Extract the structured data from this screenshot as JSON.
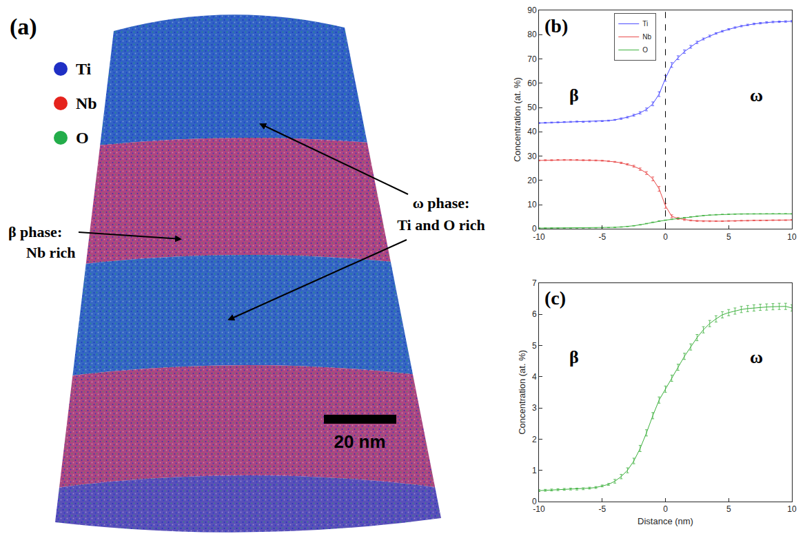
{
  "panel_a": {
    "label": "(a)",
    "legend": [
      {
        "name": "Ti",
        "color": "#1f2fc4"
      },
      {
        "name": "Nb",
        "color": "#e5231d"
      },
      {
        "name": "O",
        "color": "#23ad4a"
      }
    ],
    "phase_labels": [
      {
        "title": "β phase:",
        "text": "Nb rich"
      },
      {
        "title": "ω phase:",
        "text": "Ti and O rich"
      }
    ],
    "scale_bar": "20 nm"
  },
  "chart_data": [
    {
      "type": "line",
      "annotations": [
        "(b)",
        "β",
        "ω"
      ],
      "y_label": "Concentration (at. %)",
      "x": [
        -10,
        -9.5,
        -9,
        -8.5,
        -8,
        -7.5,
        -7,
        -6.5,
        -6,
        -5.5,
        -5,
        -4.5,
        -4,
        -3.5,
        -3,
        -2.5,
        -2,
        -1.5,
        -1,
        -0.5,
        0,
        0.5,
        1,
        1.5,
        2,
        2.5,
        3,
        3.5,
        4,
        4.5,
        5,
        5.5,
        6,
        6.5,
        7,
        7.5,
        8,
        8.5,
        9,
        9.5,
        10
      ],
      "series": [
        {
          "name": "Ti",
          "color": "#4a4aff",
          "values": [
            43.6,
            43.7,
            43.8,
            43.9,
            44.0,
            44.1,
            44.2,
            44.1,
            44.2,
            44.3,
            44.4,
            44.6,
            44.9,
            45.4,
            46.0,
            46.8,
            47.8,
            49.2,
            51.5,
            55.5,
            62.0,
            67.5,
            70.5,
            73.0,
            75.0,
            76.8,
            78.2,
            79.4,
            80.5,
            81.4,
            82.2,
            82.9,
            83.5,
            84.0,
            84.4,
            84.7,
            85.0,
            85.2,
            85.3,
            85.4,
            85.5
          ],
          "errors": [
            0.2,
            0.2,
            0.2,
            0.2,
            0.2,
            0.2,
            0.2,
            0.2,
            0.2,
            0.2,
            0.2,
            0.2,
            0.2,
            0.3,
            0.3,
            0.4,
            0.5,
            0.6,
            0.8,
            1.0,
            1.2,
            1.0,
            0.8,
            0.7,
            0.6,
            0.5,
            0.4,
            0.4,
            0.3,
            0.3,
            0.3,
            0.3,
            0.3,
            0.3,
            0.3,
            0.3,
            0.3,
            0.3,
            0.3,
            0.3,
            0.3
          ]
        },
        {
          "name": "Nb",
          "color": "#e84a4a",
          "values": [
            28.2,
            28.3,
            28.3,
            28.4,
            28.4,
            28.4,
            28.4,
            28.3,
            28.3,
            28.2,
            28.1,
            27.9,
            27.6,
            27.2,
            26.6,
            25.8,
            24.6,
            23.0,
            20.6,
            16.5,
            9.5,
            5.2,
            4.3,
            3.8,
            3.5,
            3.3,
            3.2,
            3.2,
            3.2,
            3.2,
            3.3,
            3.3,
            3.4,
            3.4,
            3.5,
            3.5,
            3.5,
            3.6,
            3.6,
            3.6,
            3.7
          ],
          "errors": [
            0.2,
            0.2,
            0.2,
            0.2,
            0.2,
            0.2,
            0.2,
            0.2,
            0.2,
            0.2,
            0.2,
            0.2,
            0.2,
            0.3,
            0.3,
            0.4,
            0.5,
            0.6,
            0.8,
            1.0,
            1.0,
            0.6,
            0.4,
            0.3,
            0.2,
            0.2,
            0.2,
            0.2,
            0.15,
            0.15,
            0.15,
            0.15,
            0.15,
            0.15,
            0.15,
            0.15,
            0.15,
            0.15,
            0.15,
            0.15,
            0.15
          ]
        },
        {
          "name": "O",
          "color": "#3cb03c",
          "values": [
            0.35,
            0.36,
            0.37,
            0.38,
            0.39,
            0.4,
            0.4,
            0.41,
            0.43,
            0.45,
            0.5,
            0.55,
            0.65,
            0.8,
            1.0,
            1.3,
            1.7,
            2.2,
            2.75,
            3.25,
            3.6,
            3.95,
            4.3,
            4.65,
            4.95,
            5.25,
            5.5,
            5.7,
            5.85,
            5.98,
            6.05,
            6.1,
            6.15,
            6.18,
            6.2,
            6.22,
            6.23,
            6.24,
            6.25,
            6.25,
            6.2
          ],
          "errors": [
            0.05,
            0.05,
            0.05,
            0.05,
            0.05,
            0.05,
            0.05,
            0.05,
            0.05,
            0.05,
            0.05,
            0.05,
            0.1,
            0.1,
            0.1,
            0.1,
            0.1,
            0.1,
            0.1,
            0.1,
            0.1,
            0.1,
            0.1,
            0.1,
            0.1,
            0.1,
            0.1,
            0.1,
            0.1,
            0.1,
            0.1,
            0.1,
            0.1,
            0.1,
            0.1,
            0.1,
            0.1,
            0.1,
            0.1,
            0.1,
            0.1
          ]
        }
      ],
      "vline": 0,
      "xlim": [
        -10,
        10
      ],
      "xticks": [
        -10,
        -5,
        0,
        5,
        10
      ],
      "ylim": [
        0,
        90
      ],
      "yticks": [
        0,
        10,
        20,
        30,
        40,
        50,
        60,
        70,
        80,
        90
      ],
      "grid": false,
      "legend": "top"
    },
    {
      "type": "line",
      "annotations": [
        "(c)",
        "β",
        "ω"
      ],
      "x_label": "Distance (nm)",
      "y_label": "Concentration (at. %)",
      "x": [
        -10,
        -9.5,
        -9,
        -8.5,
        -8,
        -7.5,
        -7,
        -6.5,
        -6,
        -5.5,
        -5,
        -4.5,
        -4,
        -3.5,
        -3,
        -2.5,
        -2,
        -1.5,
        -1,
        -0.5,
        0,
        0.5,
        1,
        1.5,
        2,
        2.5,
        3,
        3.5,
        4,
        4.5,
        5,
        5.5,
        6,
        6.5,
        7,
        7.5,
        8,
        8.5,
        9,
        9.5,
        10
      ],
      "series": [
        {
          "color": "#3cb03c",
          "values": [
            0.35,
            0.36,
            0.37,
            0.38,
            0.39,
            0.4,
            0.4,
            0.41,
            0.43,
            0.45,
            0.5,
            0.55,
            0.65,
            0.8,
            1.0,
            1.3,
            1.7,
            2.2,
            2.75,
            3.25,
            3.6,
            3.95,
            4.3,
            4.65,
            4.95,
            5.25,
            5.5,
            5.7,
            5.85,
            5.98,
            6.05,
            6.1,
            6.15,
            6.18,
            6.2,
            6.22,
            6.23,
            6.24,
            6.25,
            6.25,
            6.2
          ],
          "errors": [
            0.03,
            0.03,
            0.03,
            0.03,
            0.03,
            0.03,
            0.03,
            0.03,
            0.03,
            0.03,
            0.03,
            0.03,
            0.06,
            0.07,
            0.08,
            0.09,
            0.1,
            0.1,
            0.1,
            0.1,
            0.1,
            0.1,
            0.1,
            0.1,
            0.1,
            0.1,
            0.1,
            0.1,
            0.1,
            0.1,
            0.1,
            0.1,
            0.1,
            0.1,
            0.1,
            0.1,
            0.1,
            0.1,
            0.1,
            0.1,
            0.1
          ]
        }
      ],
      "xlim": [
        -10,
        10
      ],
      "xticks": [
        -10,
        -5,
        0,
        5,
        10
      ],
      "ylim": [
        0,
        7
      ],
      "yticks": [
        0,
        1,
        2,
        3,
        4,
        5,
        6,
        7
      ],
      "grid": false
    }
  ]
}
